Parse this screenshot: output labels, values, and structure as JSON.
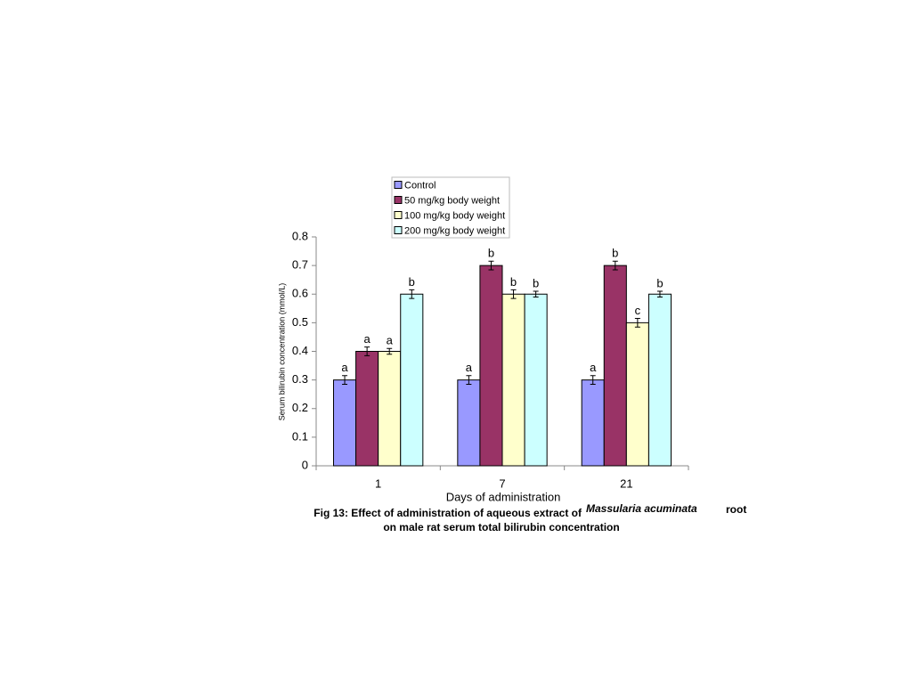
{
  "chart_data": {
    "type": "bar",
    "y_label": "Serum bilirubin concentration (mmol/L)",
    "x_label": "Days of administration",
    "caption": [
      "Fig 13: Effect of administration of aqueous extract of",
      "Massularia acuminata",
      "root",
      "on male rat serum total bilirubin concentration"
    ],
    "categories": [
      "1",
      "7",
      "21"
    ],
    "series": [
      {
        "name": "Control",
        "color": "#9999ff",
        "values": [
          0.3,
          0.3,
          0.3
        ],
        "errors": [
          0.015,
          0.015,
          0.015
        ],
        "letters": [
          "a",
          "a",
          "a"
        ]
      },
      {
        "name": "50 mg/kg body weight",
        "color": "#993366",
        "values": [
          0.4,
          0.7,
          0.7
        ],
        "errors": [
          0.015,
          0.015,
          0.015
        ],
        "letters": [
          "a",
          "b",
          "b"
        ]
      },
      {
        "name": "100 mg/kg body weight",
        "color": "#ffffcc",
        "values": [
          0.4,
          0.6,
          0.5
        ],
        "errors": [
          0.01,
          0.015,
          0.015
        ],
        "letters": [
          "a",
          "b",
          "c"
        ]
      },
      {
        "name": "200 mg/kg body weight",
        "color": "#ccffff",
        "values": [
          0.6,
          0.6,
          0.6
        ],
        "errors": [
          0.015,
          0.01,
          0.01
        ],
        "letters": [
          "b",
          "b",
          "b"
        ]
      }
    ],
    "ylim": [
      0,
      0.8
    ],
    "yticks": [
      0,
      0.1,
      0.2,
      0.3,
      0.4,
      0.5,
      0.6,
      0.7,
      0.8
    ],
    "legend": "top"
  }
}
